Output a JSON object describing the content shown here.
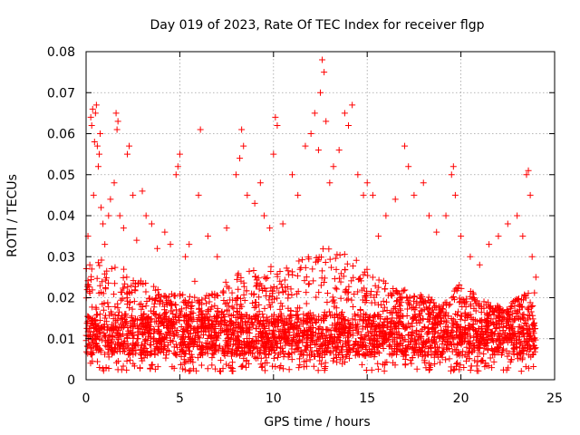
{
  "chart_data": {
    "type": "scatter",
    "title": "Day 019 of 2023, Rate Of TEC Index for receiver flgp",
    "xlabel": "GPS time / hours",
    "ylabel": "ROTI / TECUs",
    "xlim": [
      0,
      25
    ],
    "ylim": [
      0,
      0.08
    ],
    "xticks": [
      0,
      5,
      10,
      15,
      20,
      25
    ],
    "xtick_labels": [
      "0",
      "5",
      "10",
      "15",
      "20",
      "25"
    ],
    "yticks": [
      0,
      0.01,
      0.02,
      0.03,
      0.04,
      0.05,
      0.06,
      0.07,
      0.08
    ],
    "ytick_labels": [
      "0",
      "0.01",
      "0.02",
      "0.03",
      "0.04",
      "0.05",
      "0.06",
      "0.07",
      "0.08"
    ],
    "grid": true,
    "marker": "+",
    "marker_color": "#ff0000",
    "series": [
      {
        "name": "ROTI",
        "points": [
          [
            0.1,
            0.035
          ],
          [
            0.2,
            0.028
          ],
          [
            0.25,
            0.064
          ],
          [
            0.3,
            0.062
          ],
          [
            0.35,
            0.066
          ],
          [
            0.4,
            0.045
          ],
          [
            0.45,
            0.058
          ],
          [
            0.5,
            0.065
          ],
          [
            0.55,
            0.067
          ],
          [
            0.6,
            0.057
          ],
          [
            0.65,
            0.052
          ],
          [
            0.7,
            0.055
          ],
          [
            0.75,
            0.06
          ],
          [
            0.8,
            0.042
          ],
          [
            0.9,
            0.038
          ],
          [
            1.0,
            0.033
          ],
          [
            1.2,
            0.04
          ],
          [
            1.3,
            0.044
          ],
          [
            1.5,
            0.048
          ],
          [
            1.6,
            0.065
          ],
          [
            1.65,
            0.061
          ],
          [
            1.7,
            0.063
          ],
          [
            1.8,
            0.04
          ],
          [
            2.0,
            0.037
          ],
          [
            2.2,
            0.055
          ],
          [
            2.3,
            0.057
          ],
          [
            2.5,
            0.045
          ],
          [
            2.7,
            0.034
          ],
          [
            3.0,
            0.046
          ],
          [
            3.2,
            0.04
          ],
          [
            3.5,
            0.038
          ],
          [
            3.8,
            0.032
          ],
          [
            4.2,
            0.036
          ],
          [
            4.5,
            0.033
          ],
          [
            4.8,
            0.05
          ],
          [
            4.9,
            0.052
          ],
          [
            5.0,
            0.055
          ],
          [
            5.3,
            0.03
          ],
          [
            5.5,
            0.033
          ],
          [
            5.8,
            0.024
          ],
          [
            6.0,
            0.045
          ],
          [
            6.1,
            0.061
          ],
          [
            6.5,
            0.035
          ],
          [
            7.0,
            0.03
          ],
          [
            7.5,
            0.037
          ],
          [
            8.0,
            0.05
          ],
          [
            8.2,
            0.054
          ],
          [
            8.3,
            0.061
          ],
          [
            8.4,
            0.057
          ],
          [
            8.6,
            0.045
          ],
          [
            9.0,
            0.043
          ],
          [
            9.3,
            0.048
          ],
          [
            9.5,
            0.04
          ],
          [
            9.8,
            0.037
          ],
          [
            10.0,
            0.055
          ],
          [
            10.1,
            0.064
          ],
          [
            10.2,
            0.062
          ],
          [
            10.5,
            0.038
          ],
          [
            11.0,
            0.05
          ],
          [
            11.3,
            0.045
          ],
          [
            11.7,
            0.057
          ],
          [
            12.0,
            0.06
          ],
          [
            12.2,
            0.065
          ],
          [
            12.4,
            0.056
          ],
          [
            12.5,
            0.07
          ],
          [
            12.6,
            0.078
          ],
          [
            12.7,
            0.075
          ],
          [
            12.8,
            0.063
          ],
          [
            13.0,
            0.048
          ],
          [
            13.2,
            0.052
          ],
          [
            13.5,
            0.056
          ],
          [
            13.8,
            0.065
          ],
          [
            14.0,
            0.062
          ],
          [
            14.2,
            0.067
          ],
          [
            14.5,
            0.05
          ],
          [
            14.8,
            0.045
          ],
          [
            15.0,
            0.048
          ],
          [
            15.3,
            0.045
          ],
          [
            15.6,
            0.035
          ],
          [
            16.0,
            0.04
          ],
          [
            16.5,
            0.044
          ],
          [
            17.0,
            0.057
          ],
          [
            17.2,
            0.052
          ],
          [
            17.5,
            0.045
          ],
          [
            18.0,
            0.048
          ],
          [
            18.3,
            0.04
          ],
          [
            18.7,
            0.036
          ],
          [
            19.2,
            0.04
          ],
          [
            19.5,
            0.05
          ],
          [
            19.6,
            0.052
          ],
          [
            19.7,
            0.045
          ],
          [
            20.0,
            0.035
          ],
          [
            20.5,
            0.03
          ],
          [
            21.0,
            0.028
          ],
          [
            21.5,
            0.033
          ],
          [
            22.0,
            0.035
          ],
          [
            22.5,
            0.038
          ],
          [
            23.0,
            0.04
          ],
          [
            23.3,
            0.035
          ],
          [
            23.5,
            0.05
          ],
          [
            23.6,
            0.051
          ],
          [
            23.7,
            0.045
          ],
          [
            23.8,
            0.03
          ],
          [
            24.0,
            0.025
          ]
        ]
      }
    ],
    "dense_band": {
      "x_range": [
        0,
        24
      ],
      "y_min": 0.002,
      "y_mode_low": 0.006,
      "y_mode_high": 0.016,
      "y_upper_envelope": [
        [
          0,
          0.028
        ],
        [
          1,
          0.03
        ],
        [
          2,
          0.027
        ],
        [
          3,
          0.024
        ],
        [
          4,
          0.022
        ],
        [
          5,
          0.021
        ],
        [
          6,
          0.02
        ],
        [
          7,
          0.022
        ],
        [
          8,
          0.026
        ],
        [
          9,
          0.027
        ],
        [
          10,
          0.028
        ],
        [
          11,
          0.028
        ],
        [
          12,
          0.032
        ],
        [
          13,
          0.033
        ],
        [
          14,
          0.03
        ],
        [
          15,
          0.028
        ],
        [
          16,
          0.024
        ],
        [
          17,
          0.022
        ],
        [
          18,
          0.021
        ],
        [
          19,
          0.018
        ],
        [
          20,
          0.024
        ],
        [
          21,
          0.02
        ],
        [
          22,
          0.018
        ],
        [
          23,
          0.02
        ],
        [
          24,
          0.022
        ]
      ]
    }
  }
}
